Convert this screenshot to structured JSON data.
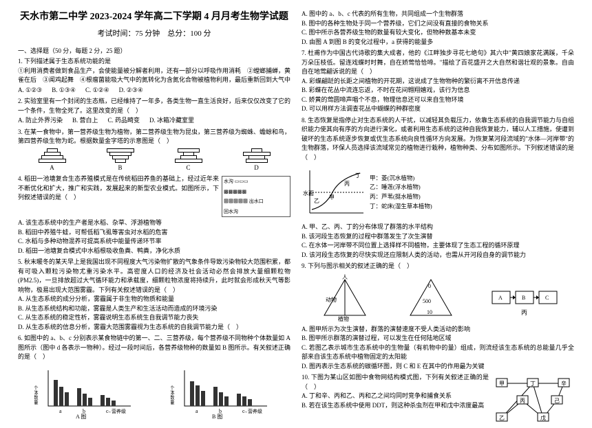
{
  "header": {
    "title": "天水市第二中学 2023-2024 学年高二下学期 4 月月考生物学试题",
    "subtitle": "考试时间：75 分钟　总分：100 分"
  },
  "section1": "一、选择题（50 分，每题 2 分，25 题）",
  "q1": {
    "stem": "1. 下列描述属于生态系统功能的是",
    "line1": "①利用消费者做到食品生产，会使能量被分解者利用，还有一部分以呼吸作用消耗　②螳螂捕蝉，黄雀在后　③闻鸡起舞　④根瘤菌能吸大气中的氮转化为含氮化合物被植物利用，最后重新回到大气中",
    "a": "A. ①②③",
    "b": "B. ①③④",
    "c": "C. ①②④",
    "d": "D. ②③④"
  },
  "q2": {
    "stem": "2. 实验室里有一个封闭的生态瓶，已经维持了一年多，各类生物一直生活良好，后来仅仅改变了它的一个条件，生物全死了。这里改变的是（　）",
    "a": "A. 防止外界污染",
    "b": "B. 营白上",
    "c": "C. 药品畸变",
    "d": "D. 冰箱冷藏室里"
  },
  "q3": {
    "stem": "3. 在某一食物中，第一营养级生物为植物，第二营养级生物为昆虫，第三营养级为蜘蛛、蟾蜍和鸟，第四营养级生物为蛇。根据数量金字塔的示意图是（　）"
  },
  "pyramids": {
    "labels": [
      "A",
      "B",
      "C",
      "D"
    ],
    "A": [
      16,
      24,
      32,
      40
    ],
    "B": [
      40,
      32,
      24,
      16
    ],
    "C": [
      32,
      16,
      24,
      40
    ],
    "D": [
      16,
      40,
      24,
      32
    ]
  },
  "q4": {
    "stem": "4. 稻田一池塘复合生态养殖模式是在传统稻田养鱼的基础上，经过近年来不断优化和扩大，推广和实践，发展起来的新型农业模式。如图所示，下列叙述错误的是（　）",
    "a": "A. 该生态系统中的生产者是水稻、杂草、浮游植物等",
    "b": "B. 稻田中养殖牛蛙，可帮低稻飞虱等害虫对水稻的危害",
    "c": "C. 水稻与多种动物混养可提高系统中能量传递环节率",
    "d": "D. 稻田一池塘复合模式中水稻根吸收鱼粪、鸭粪，净化水质"
  },
  "q5": {
    "stem": "5. 秋末暖冬的某天早上是我国出现不同程度大气污染物扩散的气象条件导致污染物较大范围积累，都有可吸入颗粒污染物尤重污染水平。高密度人口的经济及社会活动必然会排放大量细颗粒物(PM2.5)，一旦排放超过大气循环能力和承载度，细颗粒物浓度将持续升，此时就会形成秋天气等影响物，极易出现大范围雾霾。下列有关叙述错误的是（　）",
    "a": "A. 从生态系统的成分分析，雾霾属于非生物的物质和能量",
    "b": "B. 从生态系统结构和功能，雾霾是人类生产和生活活动而造成的环境污染",
    "c": "C. 从生态系统的稳定性析，雾霾说明生态系统生自我调节能力丧失",
    "d": "D. 从生态系统的信息分析，雾霾大范围雾霾视为生态系统的自我调节能力是（　）"
  },
  "q6": {
    "stem": "6. 如图中的 a、b、c 分别表示某食物链中的第一、二、三营养级，每个营养级不同物种个体数量如 A 图所示（图中 d 各表示一物种）。经过一段时间后，各营养级物种的数量如 B 图所示。有关叙述正确的是（　）"
  },
  "charts": {
    "type": "bar",
    "A": {
      "label": "A 图",
      "xlabel": "→营养级",
      "ylabel": "个体数量",
      "groups": [
        "a",
        "b",
        "c"
      ],
      "series_per_group": 3,
      "heights": [
        [
          38,
          28,
          20
        ],
        [
          26,
          18,
          12
        ],
        [
          16,
          12,
          8
        ]
      ]
    },
    "B": {
      "label": "B 图",
      "xlabel": "→营养级",
      "ylabel": "个体数量",
      "groups": [
        "a",
        "b",
        "c"
      ],
      "heights": [
        [
          36,
          30,
          22
        ],
        [
          28,
          20,
          14
        ],
        [
          18,
          14,
          10
        ]
      ]
    },
    "bar_color": "#333333",
    "axis_color": "#000000"
  },
  "legend_right": {
    "items": [
      {
        "sym": "甲",
        "text": "甲：菱(沉水植物)"
      },
      {
        "sym": "乙",
        "text": "乙：睡莲(浮水植物)"
      },
      {
        "sym": "丙",
        "text": "丙：芦苇(挺水植物)"
      },
      {
        "sym": "丁",
        "text": "丁：蛇床(湿生草本植物)"
      }
    ],
    "left_label": "水面"
  },
  "r1": {
    "stem": "A. 图中的 a、b、c 代表的所有生物，共同组成一个生物群落",
    "b": "B. 图中的各种生物处于同一个营养级，它们之间没有直接的食物关系",
    "c": "C. 图中所示各营养级生物的数量有较大变化，但物种数基本未变",
    "d": "D. 由图 A 到图 B 的变化过程中，a 获得的能量多"
  },
  "r2": {
    "stem": "7. 杜甫作为中国古代诗歌的集大成者，他的《江畔独步寻花七绝句》其六中\"黄四娘家花满蹊，千朵万朵压枝低。留连戏蝶时时舞，自在娇莺恰恰啼。\"描绘了百花盛开之大自然和谐壮观的景象。自由自在地莺翩诉说的是（　）",
    "a": "A. 彩蝶翩跹的长距之间植物的开花期，这说成了生物物种的繁衍离不开信息传递",
    "b": "B. 彩蝶在花丛中流连忘返，不时在花间翱翔嬉戏，该行为信息",
    "c": "C. 娇黄的莺圆啼声唱个不息，物理信息还可以来自生物环境",
    "d": "D. 可以用样方法调查花丛中蝴蝶的种群密度"
  },
  "r3": {
    "stem": "8. 生态恢复是指停止对生态系统的人干扰，以减轻其负载压力，依靠生态系统的自我调节能力与自组织能力使其向有序的方向进行演化，或者利用生态系统的这种自我恢复能力，辅以人工措施，使遭到破坏的生态系统逐步恢复或优生态系统向良性循环方向发展。为恢复某河段流域的\"水体—河岸带\"的生物群落，环保人员选择该流域常见的植物进行栽种，植物种类、分布如图所示。下列叙述错误的是（　）"
  },
  "r3opts": {
    "a": "A. 甲、乙、丙、丁的分布体现了群落的水平结构",
    "b": "B. 该河段生态恢复的过程中群落发生了次生演替",
    "c": "C. 在水体一河岸带不同位置上选择样不同植物，主要体现了生态工程的循环原理",
    "d": "D. 该河段生态恢复的尽快实现还应限制人类的活动，也需从开河段自身的调节能力"
  },
  "r4": {
    "stem": "9. 下列与图示相关的叙述正确的是（　）"
  },
  "tri": {
    "jia": {
      "label": "甲",
      "apex": "人",
      "left": "动物",
      "right": "",
      "bottom": "植物"
    },
    "yi": {
      "label": "乙",
      "nums": [
        "0",
        "500",
        "10"
      ]
    },
    "bing": {
      "label": "丙",
      "cells": [
        "A",
        "B",
        "C"
      ]
    }
  },
  "r4opts": {
    "a": "A. 图甲所示为次生演替，群落的演替速度不受人类活动的影响",
    "b": "B. 图甲所示群落的演替过程，可以发生在任何陆地区域",
    "c": "C. 若图乙表示城市生态系统中的生物量（有机物中的量）组成，则流经该生态系统的总能量几乎全部来自该生态系统中植物固定的太阳能",
    "d": "D. 图丙表示生态系统的碳循环图，则 C 和 E 在其中的作用最为关键"
  },
  "r5": {
    "stem": "10. 下图为某山区如图中食物网结构模式图，下列有关叙述正确的是（　）",
    "a": "A. 丁和辛、丙和乙、丙和乙之间均同时竞争和捕食关系",
    "b": "B. 若在该生态系统中使用 DDT，则这种杀虫剂在甲和戊中浓度最高"
  },
  "foodweb": {
    "nodes": [
      "甲",
      "乙",
      "丙",
      "丁",
      "戊",
      "己",
      "辛"
    ],
    "edges": [
      [
        "甲",
        "丁"
      ],
      [
        "乙",
        "丁"
      ],
      [
        "丁",
        "辛"
      ],
      [
        "戊",
        "丁"
      ],
      [
        "戊",
        "己"
      ],
      [
        "己",
        "辛"
      ],
      [
        "丙",
        "乙"
      ],
      [
        "丙",
        "戊"
      ]
    ]
  },
  "colors": {
    "text": "#000000",
    "bg": "#ffffff",
    "line": "#000000",
    "fill_gray": "#666666"
  }
}
